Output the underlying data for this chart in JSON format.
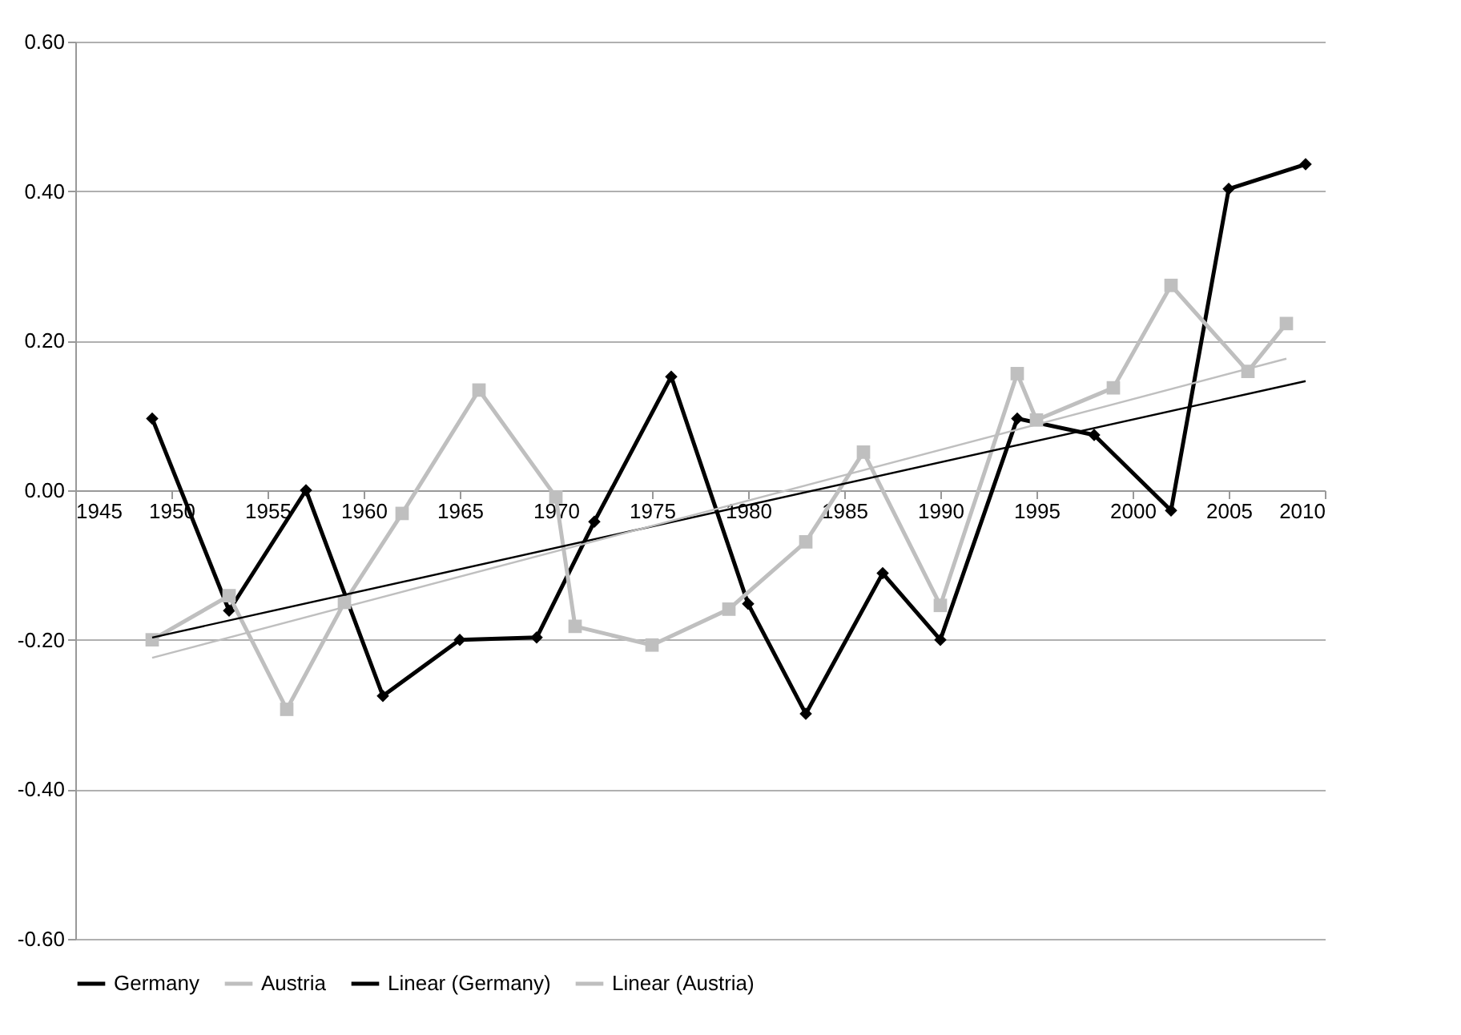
{
  "chart_data": {
    "type": "line",
    "xlim": [
      1945,
      2010
    ],
    "xticks": [
      1945,
      1950,
      1955,
      1960,
      1965,
      1970,
      1975,
      1980,
      1985,
      1990,
      1995,
      2000,
      2005,
      2010
    ],
    "ylim": [
      -0.6,
      0.6
    ],
    "yticks": [
      {
        "value": -0.6,
        "label": "-0.60"
      },
      {
        "value": -0.4,
        "label": "-0.40"
      },
      {
        "value": -0.2,
        "label": "-0.20"
      },
      {
        "value": 0,
        "label": "0.00"
      },
      {
        "value": 0.2,
        "label": "0.20"
      },
      {
        "value": 0.4,
        "label": "0.40"
      },
      {
        "value": 0.6,
        "label": "0.60"
      }
    ],
    "grid": "y",
    "legend": "bottom",
    "line_style": "solid",
    "series": [
      {
        "name": "Germany",
        "color": "#000000",
        "marker": "diamond",
        "x": [
          1949,
          1953,
          1957,
          1961,
          1965,
          1969,
          1972,
          1976,
          1980,
          1983,
          1987,
          1990,
          1994,
          1998,
          2002,
          2005,
          2009
        ],
        "values": [
          0.096,
          -0.161,
          0.0,
          -0.275,
          -0.2,
          -0.197,
          -0.042,
          0.152,
          -0.152,
          -0.299,
          -0.111,
          -0.2,
          0.096,
          0.074,
          -0.027,
          0.403,
          0.436
        ]
      },
      {
        "name": "Austria",
        "color": "#bfbfbf",
        "marker": "square",
        "x": [
          1949,
          1953,
          1956,
          1959,
          1962,
          1966,
          1970,
          1971,
          1975,
          1979,
          1983,
          1986,
          1990,
          1994,
          1995,
          1999,
          2002,
          2006,
          2008
        ],
        "values": [
          -0.2,
          -0.141,
          -0.293,
          -0.15,
          -0.031,
          0.134,
          -0.009,
          -0.182,
          -0.207,
          -0.159,
          -0.069,
          0.051,
          -0.154,
          0.156,
          0.094,
          0.137,
          0.274,
          0.159,
          0.223
        ]
      },
      {
        "name": "Linear (Germany)",
        "color": "#000000",
        "marker": "none",
        "x": [
          1949,
          2009
        ],
        "values": [
          -0.197,
          0.146
        ]
      },
      {
        "name": "Linear (Austria)",
        "color": "#bfbfbf",
        "marker": "none",
        "x": [
          1949,
          2008
        ],
        "values": [
          -0.224,
          0.176
        ]
      }
    ]
  }
}
